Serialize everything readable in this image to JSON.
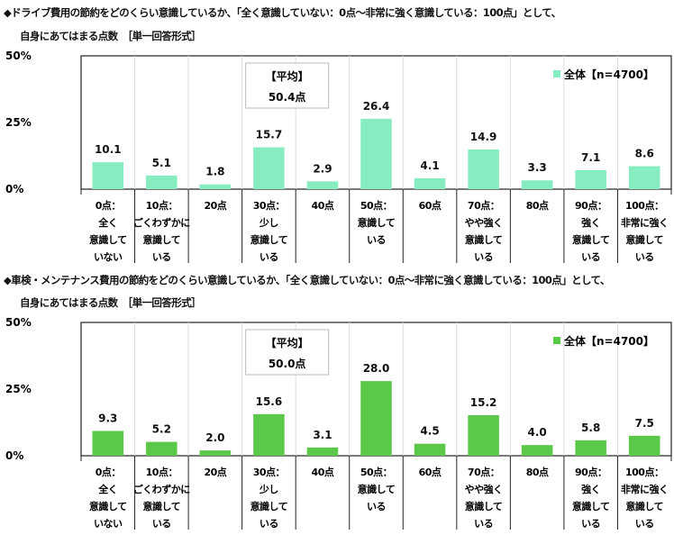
{
  "chart_data": [
    {
      "type": "bar",
      "title": "◆ドライブ費用の節約をどのくらい意識しているか、「全く意識していない：0点～非常に強く意識している：100点」として、",
      "subtitle": "自身にあてはまる点数　［単一回答形式］",
      "categories": [
        [
          "0点：",
          "全く",
          "意識して",
          "いない"
        ],
        [
          "10点：",
          "ごくわずかに",
          "意識して",
          "いる"
        ],
        [
          "20点"
        ],
        [
          "30点：",
          "少し",
          "意識して",
          "いる"
        ],
        [
          "40点"
        ],
        [
          "50点：",
          "意識して",
          "いる"
        ],
        [
          "60点"
        ],
        [
          "70点：",
          "やや強く",
          "意識して",
          "いる"
        ],
        [
          "80点"
        ],
        [
          "90点：",
          "強く",
          "意識して",
          "いる"
        ],
        [
          "100点：",
          "非常に強く",
          "意識して",
          "いる"
        ]
      ],
      "values": [
        10.1,
        5.1,
        1.8,
        15.7,
        2.9,
        26.4,
        4.1,
        14.9,
        3.3,
        7.1,
        8.6
      ],
      "value_labels": [
        "10.1",
        "5.1",
        "1.8",
        "15.7",
        "2.9",
        "26.4",
        "4.1",
        "14.9",
        "3.3",
        "7.1",
        "8.6"
      ],
      "yticks": [
        "50%",
        "25%",
        "0%"
      ],
      "ylim": [
        0,
        50
      ],
      "legend": "全体【n=4700】",
      "legend_position": "top-right",
      "color": "#87ecbf",
      "average_label": "【平均】",
      "average_value": "50.4点"
    },
    {
      "type": "bar",
      "title": "◆車検・メンテナンス費用の節約をどのくらい意識しているか、「全く意識していない：0点～非常に強く意識している：100点」として、",
      "subtitle": "自身にあてはまる点数　［単一回答形式］",
      "categories": [
        [
          "0点：",
          "全く",
          "意識して",
          "いない"
        ],
        [
          "10点：",
          "ごくわずかに",
          "意識して",
          "いる"
        ],
        [
          "20点"
        ],
        [
          "30点：",
          "少し",
          "意識して",
          "いる"
        ],
        [
          "40点"
        ],
        [
          "50点：",
          "意識して",
          "いる"
        ],
        [
          "60点"
        ],
        [
          "70点：",
          "やや強く",
          "意識して",
          "いる"
        ],
        [
          "80点"
        ],
        [
          "90点：",
          "強く",
          "意識して",
          "いる"
        ],
        [
          "100点：",
          "非常に強く",
          "意識して",
          "いる"
        ]
      ],
      "values": [
        9.3,
        5.2,
        2.0,
        15.6,
        3.1,
        28.0,
        4.5,
        15.2,
        4.0,
        5.8,
        7.5
      ],
      "value_labels": [
        "9.3",
        "5.2",
        "2.0",
        "15.6",
        "3.1",
        "28.0",
        "4.5",
        "15.2",
        "4.0",
        "5.8",
        "7.5"
      ],
      "yticks": [
        "50%",
        "25%",
        "0%"
      ],
      "ylim": [
        0,
        50
      ],
      "legend": "全体【n=4700】",
      "legend_position": "top-right",
      "color": "#5cc84a",
      "average_label": "【平均】",
      "average_value": "50.0点"
    }
  ]
}
